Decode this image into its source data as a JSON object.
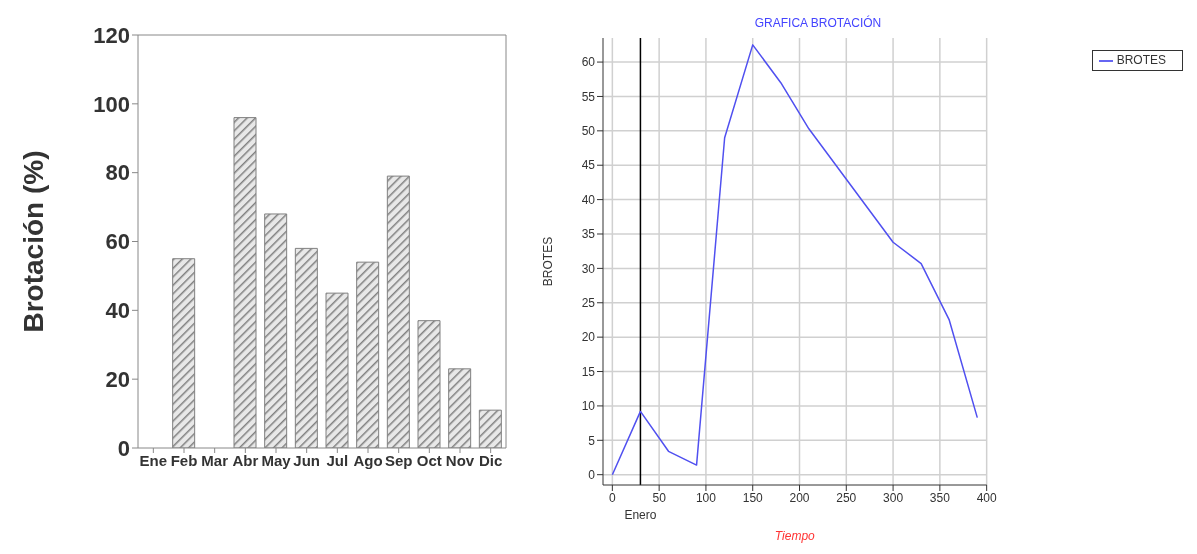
{
  "chart_data": [
    {
      "type": "bar",
      "ylabel": "Brotación (%)",
      "categories": [
        "Ene",
        "Feb",
        "Mar",
        "Abr",
        "May",
        "Jun",
        "Jul",
        "Ago",
        "Sep",
        "Oct",
        "Nov",
        "Dic"
      ],
      "values": [
        null,
        55,
        null,
        96,
        68,
        58,
        45,
        54,
        79,
        37,
        23,
        11
      ],
      "color": "#808080",
      "ylim": [
        0,
        120
      ],
      "yticks": [
        0,
        20,
        40,
        60,
        80,
        100,
        120
      ],
      "grid": false,
      "legend": false
    },
    {
      "type": "line",
      "title": "GRAFICA BROTACIÓN",
      "xlabel": "Tiempo",
      "ylabel": "BROTES",
      "x": [
        0,
        30,
        60,
        90,
        120,
        150,
        180,
        210,
        300,
        330,
        360,
        390
      ],
      "series": [
        {
          "name": "BROTES",
          "color": "#5050f0",
          "values": [
            0,
            9.2,
            3.4,
            1.4,
            49,
            62.5,
            57,
            50.3,
            33.8,
            30.7,
            22.5,
            8.3
          ]
        }
      ],
      "xlim": [
        -10,
        400
      ],
      "xticks": [
        0,
        50,
        100,
        150,
        200,
        250,
        300,
        350,
        400
      ],
      "ylim": [
        -1.5,
        63.5
      ],
      "yticks": [
        0,
        5,
        10,
        15,
        20,
        25,
        30,
        35,
        40,
        45,
        50,
        55,
        60
      ],
      "grid": true,
      "legend": "top right",
      "marker": "none",
      "line_style": "solid",
      "ref_lines": [
        {
          "axis": "x",
          "value": 30,
          "label": "Enero",
          "color": "#000000"
        }
      ]
    }
  ]
}
